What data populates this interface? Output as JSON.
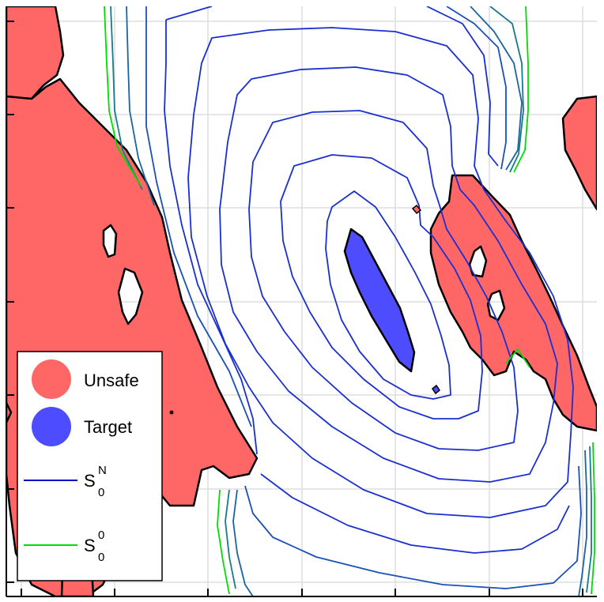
{
  "chart_data": {
    "type": "contour",
    "title": "",
    "xlabel": "",
    "ylabel": "",
    "grid": true,
    "tick_labels_shown": false,
    "legend_placement": "left",
    "legend": [
      {
        "label": "Unsafe",
        "kind": "region",
        "color": "#ff6666"
      },
      {
        "label": "Target",
        "kind": "region",
        "color": "#4d4dff"
      },
      {
        "label": "S",
        "sup": "N",
        "sub": "0",
        "kind": "line",
        "color": "#0000cc"
      },
      {
        "label": "S",
        "sup": "0",
        "sub": "0",
        "kind": "line",
        "color": "#00dd00"
      }
    ],
    "colors": {
      "unsafe": "#ff6666",
      "target": "#4d4dff",
      "contour_inner": "#1a2fd0",
      "contour_mid": "#1a55b0",
      "contour_outer": "#167a8a",
      "contour_edge": "#00dd00",
      "grid": "#dddddd",
      "border": "#000000"
    },
    "series": [
      {
        "name": "SN0",
        "level_count": 10
      },
      {
        "name": "S00",
        "level_count": 1
      }
    ]
  }
}
